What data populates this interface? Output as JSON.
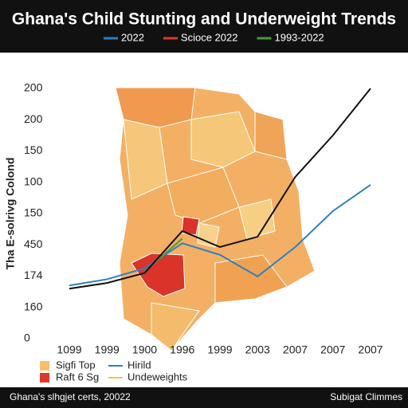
{
  "chart_data": {
    "type": "line",
    "title": "Ghana's Child Stunting and Underweight Trends",
    "y_label": "Tha E-solrivg Colond",
    "footer_left": "Ghana's slhgjet certs, 20022",
    "footer_right": "Subigat Climmes",
    "categories": [
      "1099",
      "1999",
      "1900",
      "1996",
      "1999",
      "2003",
      "2007",
      "2007",
      "2007"
    ],
    "ylim": [
      0,
      8
    ],
    "yticks": [
      {
        "value": 0,
        "label": "0"
      },
      {
        "value": 1,
        "label": "160"
      },
      {
        "value": 2,
        "label": "174"
      },
      {
        "value": 3,
        "label": "450"
      },
      {
        "value": 4,
        "label": "150"
      },
      {
        "value": 5,
        "label": "100"
      },
      {
        "value": 6,
        "label": "150"
      },
      {
        "value": 7,
        "label": "200"
      },
      {
        "value": 8,
        "label": "200"
      }
    ],
    "series": [
      {
        "name": "2022",
        "color": "#2f7fc1",
        "values": [
          1.7,
          1.9,
          2.25,
          3.05,
          2.68,
          1.99,
          2.93,
          4.08,
          4.92
        ]
      },
      {
        "name": "Scioce 2022",
        "color": "#d93a2b",
        "values": [
          null,
          null,
          null,
          null,
          null,
          null,
          null,
          null,
          null
        ]
      },
      {
        "name": "1993-2022",
        "color": "#4a9a3a",
        "values": [
          null,
          null,
          2.15,
          3.2,
          null,
          null,
          null,
          null,
          null
        ]
      },
      {
        "name": "",
        "color": "#111111",
        "values": [
          1.6,
          1.78,
          2.1,
          3.44,
          2.93,
          3.26,
          5.17,
          6.5,
          8.0
        ]
      }
    ],
    "legend2": [
      {
        "name": "Sigfi Top",
        "color": "#f5c26b",
        "kind": "box"
      },
      {
        "name": "Hirild",
        "color": "#2f7fc1",
        "kind": "line"
      },
      {
        "name": "Raft 6 Sg",
        "color": "#d93a2b",
        "kind": "box"
      },
      {
        "name": "Undeweights",
        "color": "#f2c14e",
        "kind": "line"
      }
    ]
  }
}
